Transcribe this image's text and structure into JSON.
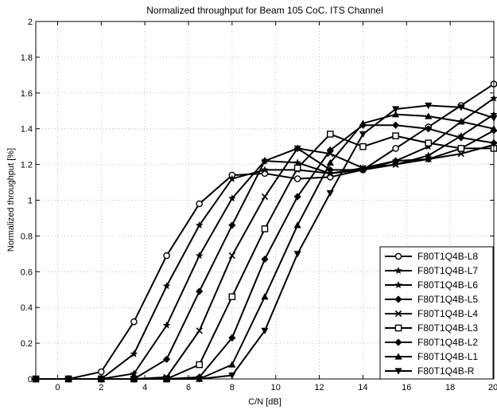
{
  "chart_data": {
    "type": "line",
    "title": "Normalized throughput for Beam 105 CoC. ITS Channel",
    "xlabel": "C/N [dB]",
    "ylabel": "Normalized throughput [%]",
    "xlim": [
      -1,
      20
    ],
    "ylim": [
      0,
      2
    ],
    "xticks": [
      "0",
      "2",
      "4",
      "6",
      "8",
      "10",
      "12",
      "14",
      "16",
      "18",
      "20"
    ],
    "yticks": [
      "0",
      "0.2",
      "0.4",
      "0.6",
      "0.8",
      "1",
      "1.2",
      "1.4",
      "1.6",
      "1.8",
      "2"
    ],
    "grid": true,
    "legend_position": "bottom-right",
    "x": [
      -1,
      0.5,
      2,
      3.5,
      5,
      6.5,
      8,
      9.5,
      11,
      12.5,
      14,
      15.5,
      17,
      18.5,
      20
    ],
    "series": [
      {
        "name": "F80T1Q4B-L8",
        "marker": "circle",
        "values": [
          0,
          0,
          0.04,
          0.32,
          0.69,
          0.98,
          1.14,
          1.15,
          1.12,
          1.13,
          1.17,
          1.29,
          1.41,
          1.53,
          1.65
        ]
      },
      {
        "name": "F80T1Q4B-L7",
        "marker": "star",
        "values": [
          0,
          0,
          0,
          0.14,
          0.52,
          0.86,
          1.12,
          1.17,
          1.17,
          1.15,
          1.18,
          1.22,
          1.3,
          1.44,
          1.57
        ]
      },
      {
        "name": "F80T1Q4B-L6",
        "marker": "star",
        "values": [
          0,
          0,
          0,
          0.03,
          0.3,
          0.69,
          1.01,
          1.22,
          1.21,
          1.15,
          1.17,
          1.2,
          1.25,
          1.36,
          1.48
        ]
      },
      {
        "name": "F80T1Q4B-L5",
        "marker": "diamond",
        "values": [
          0,
          0,
          0,
          0,
          0.11,
          0.49,
          0.86,
          1.22,
          1.29,
          1.17,
          1.17,
          1.22,
          1.23,
          1.29,
          1.39
        ]
      },
      {
        "name": "F80T1Q4B-L4",
        "marker": "x",
        "values": [
          0,
          0,
          0,
          0,
          0.01,
          0.27,
          0.69,
          1.02,
          1.29,
          1.26,
          1.18,
          1.2,
          1.23,
          1.26,
          1.31
        ]
      },
      {
        "name": "F80T1Q4B-L3",
        "marker": "square",
        "values": [
          0,
          0,
          0,
          0,
          0,
          0.08,
          0.46,
          0.84,
          1.18,
          1.37,
          1.3,
          1.36,
          1.32,
          1.29,
          1.29
        ]
      },
      {
        "name": "F80T1Q4B-L2",
        "marker": "diamond",
        "values": [
          0,
          0,
          0,
          0,
          0,
          0.01,
          0.23,
          0.67,
          1.02,
          1.28,
          1.42,
          1.42,
          1.4,
          1.35,
          1.32
        ]
      },
      {
        "name": "F80T1Q4B-L1",
        "marker": "triangle",
        "values": [
          0,
          0,
          0,
          0,
          0,
          0,
          0.08,
          0.46,
          0.86,
          1.21,
          1.43,
          1.48,
          1.47,
          1.44,
          1.4
        ]
      },
      {
        "name": "F80T1Q4B-R",
        "marker": "tri-down",
        "values": [
          0,
          0,
          0,
          0,
          0,
          0,
          0.02,
          0.27,
          0.7,
          1.04,
          1.37,
          1.51,
          1.53,
          1.52,
          1.46
        ]
      }
    ]
  }
}
